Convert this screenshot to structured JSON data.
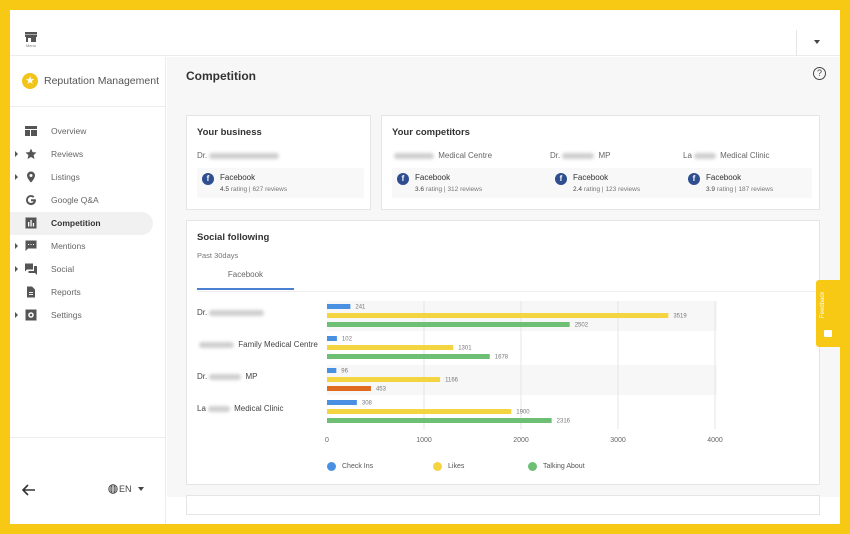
{
  "topbar": {
    "menu_label": "Menu"
  },
  "sidebar": {
    "brand": "Reputation Management",
    "items": [
      {
        "label": "Overview",
        "icon": "dashboard-icon",
        "expandable": false,
        "active": false
      },
      {
        "label": "Reviews",
        "icon": "star-icon",
        "expandable": true,
        "active": false
      },
      {
        "label": "Listings",
        "icon": "location-pin-icon",
        "expandable": true,
        "active": false
      },
      {
        "label": "Google Q&A",
        "icon": "google-icon",
        "expandable": false,
        "active": false
      },
      {
        "label": "Competition",
        "icon": "bar-chart-icon",
        "expandable": false,
        "active": true
      },
      {
        "label": "Mentions",
        "icon": "chat-icon",
        "expandable": true,
        "active": false
      },
      {
        "label": "Social",
        "icon": "forum-icon",
        "expandable": true,
        "active": false
      },
      {
        "label": "Reports",
        "icon": "document-icon",
        "expandable": false,
        "active": false
      },
      {
        "label": "Settings",
        "icon": "settings-icon",
        "expandable": true,
        "active": false
      }
    ],
    "language": "EN"
  },
  "main": {
    "title": "Competition",
    "your_business": {
      "title": "Your business",
      "name_prefix": "Dr.",
      "name_suffix": "",
      "network": "Facebook",
      "rating": "4.5",
      "rating_label": "rating",
      "reviews": "627 reviews"
    },
    "competitors": {
      "title": "Your competitors",
      "items": [
        {
          "name_prefix": "",
          "name_suffix": "Medical Centre",
          "network": "Facebook",
          "rating": "3.6",
          "rating_label": "rating",
          "reviews": "312 reviews"
        },
        {
          "name_prefix": "Dr.",
          "name_suffix": "MP",
          "network": "Facebook",
          "rating": "2.4",
          "rating_label": "rating",
          "reviews": "123 reviews"
        },
        {
          "name_prefix": "La",
          "name_suffix": "Medical Clinic",
          "network": "Facebook",
          "rating": "3.9",
          "rating_label": "rating",
          "reviews": "187 reviews"
        }
      ]
    },
    "social_following": {
      "title": "Social following",
      "subtitle": "Past 30days",
      "tab": "Facebook"
    }
  },
  "feedback": {
    "label": "Feedback"
  },
  "chart_data": {
    "type": "bar",
    "orientation": "horizontal",
    "categories": [
      {
        "prefix": "Dr.",
        "suffix": ""
      },
      {
        "prefix": "",
        "suffix": "Family Medical Centre"
      },
      {
        "prefix": "Dr.",
        "suffix": "MP"
      },
      {
        "prefix": "La",
        "suffix": "Medical Clinic"
      }
    ],
    "series": [
      {
        "name": "Check Ins",
        "color": "#4a90e2",
        "values": [
          241,
          102,
          96,
          308
        ]
      },
      {
        "name": "Likes",
        "color": "#f5d442",
        "values": [
          3519,
          1301,
          1166,
          1900
        ]
      },
      {
        "name": "Talking About",
        "color": "#6dbf73",
        "values": [
          2502,
          1678,
          453,
          2316
        ],
        "highlight": {
          "index": 2,
          "color": "#e06a1f"
        }
      }
    ],
    "xlim": [
      0,
      4000
    ],
    "xticks": [
      "0",
      "1000",
      "2000",
      "3000",
      "4000"
    ],
    "grid": true,
    "legend": "bottom-left"
  }
}
